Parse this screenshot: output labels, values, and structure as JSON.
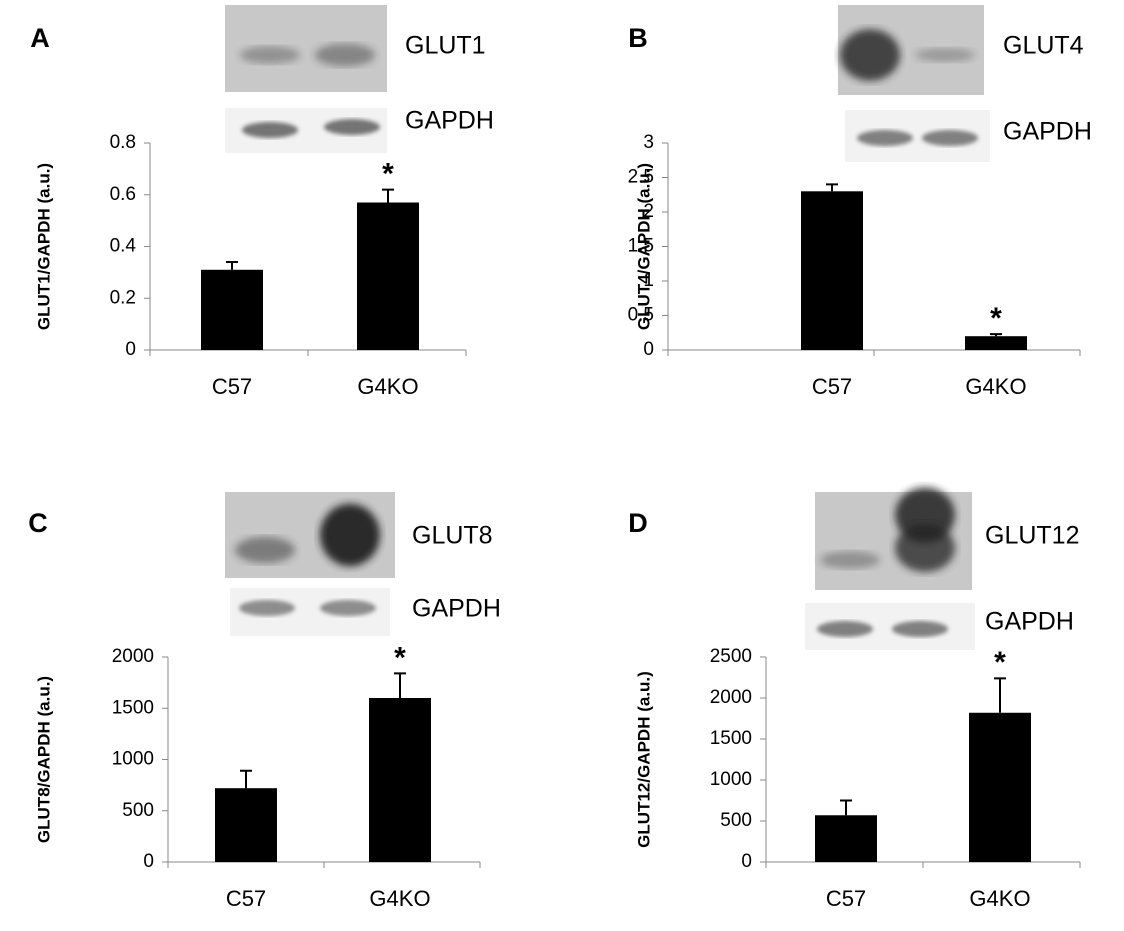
{
  "chart_data": [
    {
      "type": "bar",
      "panel": "A",
      "blot_labels": [
        "GLUT1",
        "GAPDH"
      ],
      "ylabel": "GLUT1/GAPDH (a.u.)",
      "categories": [
        "C57",
        "G4KO"
      ],
      "values": [
        0.31,
        0.57
      ],
      "errors": [
        0.03,
        0.05
      ],
      "color": "#000000",
      "annotation": "*",
      "ylim": [
        0,
        0.8
      ],
      "yticks": [
        0,
        0.2,
        0.4,
        0.6,
        0.8
      ]
    },
    {
      "type": "bar",
      "panel": "B",
      "blot_labels": [
        "GLUT4",
        "GAPDH"
      ],
      "ylabel": "GLUT4/GAPDH (a.u.)",
      "categories": [
        "C57",
        "G4KO"
      ],
      "values": [
        2.3,
        0.2
      ],
      "errors": [
        0.1,
        0.03
      ],
      "color": "#000000",
      "annotation": "*",
      "ylim": [
        0,
        3
      ],
      "yticks": [
        0,
        0.5,
        1,
        1.5,
        2,
        2.5,
        3
      ]
    },
    {
      "type": "bar",
      "panel": "C",
      "blot_labels": [
        "GLUT8",
        "GAPDH"
      ],
      "ylabel": "GLUT8/GAPDH (a.u.)",
      "categories": [
        "C57",
        "G4KO"
      ],
      "values": [
        720,
        1600
      ],
      "errors": [
        170,
        240
      ],
      "color": "#000000",
      "annotation": "*",
      "ylim": [
        0,
        2000
      ],
      "yticks": [
        0,
        500,
        1000,
        1500,
        2000
      ]
    },
    {
      "type": "bar",
      "panel": "D",
      "blot_labels": [
        "GLUT12",
        "GAPDH"
      ],
      "ylabel": "GLUT12/GAPDH (a.u.)",
      "categories": [
        "C57",
        "G4KO"
      ],
      "values": [
        570,
        1820
      ],
      "errors": [
        180,
        420
      ],
      "color": "#000000",
      "annotation": "*",
      "ylim": [
        0,
        2500
      ],
      "yticks": [
        0,
        500,
        1000,
        1500,
        2000,
        2500
      ]
    }
  ]
}
